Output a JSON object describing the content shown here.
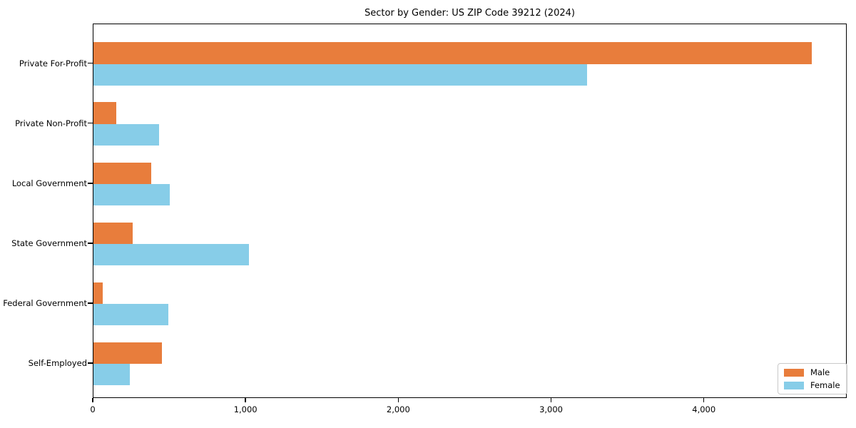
{
  "title": "Sector by Gender: US ZIP Code 39212 (2024)",
  "colors": {
    "male": "#e87d3c",
    "female": "#87cde8",
    "frame": "#000000",
    "legend_border": "#c9c9c9"
  },
  "chart_data": {
    "type": "bar",
    "orientation": "horizontal",
    "title": "Sector by Gender: US ZIP Code 39212 (2024)",
    "xlabel": "",
    "ylabel": "",
    "categories": [
      "Private For-Profit",
      "Private Non-Profit",
      "Local Government",
      "State Government",
      "Federal Government",
      "Self-Employed"
    ],
    "series": [
      {
        "name": "Male",
        "color": "#e87d3c",
        "values": [
          4700,
          150,
          380,
          255,
          62,
          450
        ]
      },
      {
        "name": "Female",
        "color": "#87cde8",
        "values": [
          3230,
          430,
          500,
          1020,
          490,
          238
        ]
      }
    ],
    "xlim": [
      0,
      4935
    ],
    "x_ticks": [
      0,
      1000,
      2000,
      3000,
      4000
    ],
    "x_tick_labels": [
      "0",
      "1,000",
      "2,000",
      "3,000",
      "4,000"
    ],
    "grid": false,
    "legend_position": "lower right"
  },
  "legend": {
    "items": [
      {
        "label": "Male",
        "color": "#e87d3c"
      },
      {
        "label": "Female",
        "color": "#87cde8"
      }
    ]
  }
}
